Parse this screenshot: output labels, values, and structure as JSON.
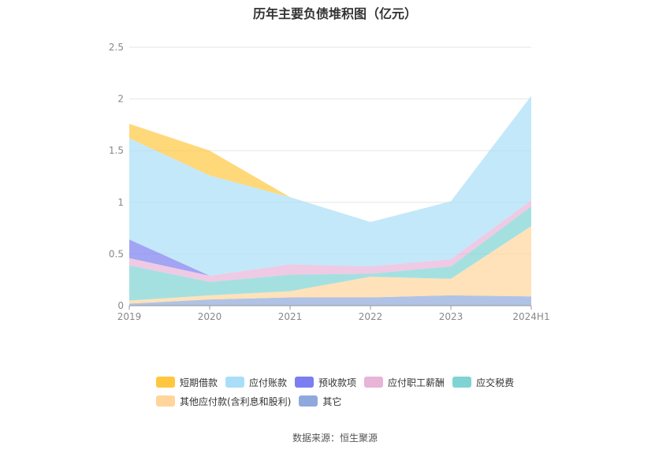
{
  "title": "历年主要负债堆积图（亿元）",
  "source": "数据来源：恒生聚源",
  "chart_data": {
    "type": "area",
    "stacked": true,
    "categories": [
      "2019",
      "2020",
      "2021",
      "2022",
      "2023",
      "2024H1"
    ],
    "ylim": [
      0,
      2.5
    ],
    "yticks": [
      "0",
      "0.5",
      "1",
      "1.5",
      "2",
      "2.5"
    ],
    "grid": true,
    "legend_position": "bottom",
    "series": [
      {
        "name": "其它",
        "color": "#8fa9dc",
        "values": [
          0.02,
          0.06,
          0.08,
          0.08,
          0.1,
          0.09
        ]
      },
      {
        "name": "其他应付款(含利息和股利)",
        "color": "#ffd59b",
        "values": [
          0.03,
          0.04,
          0.06,
          0.2,
          0.16,
          0.68
        ]
      },
      {
        "name": "应交税费",
        "color": "#7fd3d4",
        "values": [
          0.34,
          0.13,
          0.16,
          0.03,
          0.12,
          0.19
        ]
      },
      {
        "name": "应付职工薪酬",
        "color": "#e8b4d8",
        "values": [
          0.07,
          0.06,
          0.1,
          0.07,
          0.07,
          0.06
        ]
      },
      {
        "name": "预收款项",
        "color": "#7b7ef0",
        "values": [
          0.18,
          0.0,
          0.0,
          0.0,
          0.0,
          0.0
        ]
      },
      {
        "name": "应付账款",
        "color": "#aadef8",
        "values": [
          0.98,
          0.97,
          0.65,
          0.43,
          0.56,
          1.01
        ]
      },
      {
        "name": "短期借款",
        "color": "#ffc740",
        "values": [
          0.14,
          0.24,
          0.0,
          0.0,
          0.0,
          0.0
        ]
      }
    ]
  },
  "legend": [
    [
      {
        "label": "短期借款",
        "color": "#ffc740"
      },
      {
        "label": "应付账款",
        "color": "#aadef8"
      },
      {
        "label": "预收款项",
        "color": "#7b7ef0"
      },
      {
        "label": "应付职工薪酬",
        "color": "#e8b4d8"
      },
      {
        "label": "应交税费",
        "color": "#7fd3d4"
      }
    ],
    [
      {
        "label": "其他应付款(含利息和股利)",
        "color": "#ffd59b"
      },
      {
        "label": "其它",
        "color": "#8fa9dc"
      }
    ]
  ]
}
